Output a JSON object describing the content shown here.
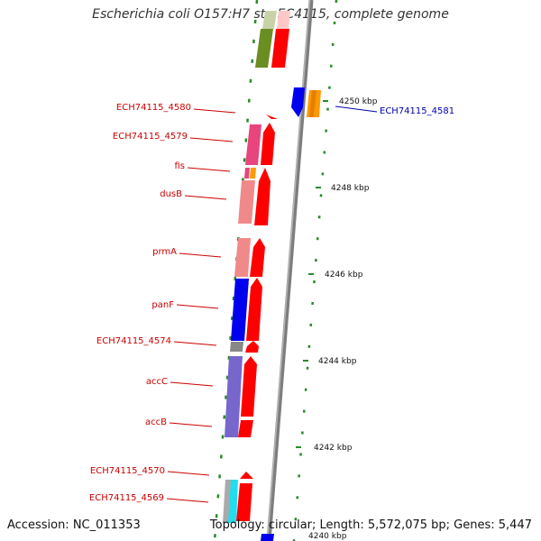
{
  "title": "Escherichia coli O157:H7 str. EC4115, complete genome",
  "footer": {
    "accession": "Accession: NC_011353",
    "topology": "Topology: circular; Length: 5,572,075 bp; Genes: 5,447"
  },
  "colors": {
    "label_left": "#cc0000",
    "label_right": "#0000aa",
    "backbone": "#8a8a8a",
    "tick": "#2a8a2a",
    "cds_forward": "#ff0000",
    "gene_pink": "#e8447e",
    "gene_orange": "#ff9900",
    "gene_salmon": "#f08a8a",
    "gene_blue": "#0000ee",
    "gene_purple": "#7766cc",
    "gene_grey": "#999999",
    "gene_cyan": "#22ddee",
    "gene_olive": "#6b8e23"
  },
  "kbp_labels": [
    "4250 kbp",
    "4248 kbp",
    "4246 kbp",
    "4244 kbp",
    "4242 kbp",
    "4240 kbp"
  ],
  "genes_left": [
    "ECH74115_4580",
    "ECH74115_4579",
    "fis",
    "dusB",
    "prmA",
    "panF",
    "ECH74115_4574",
    "accC",
    "accB",
    "ECH74115_4570",
    "ECH74115_4569"
  ],
  "genes_right": [
    "ECH74115_4581"
  ]
}
